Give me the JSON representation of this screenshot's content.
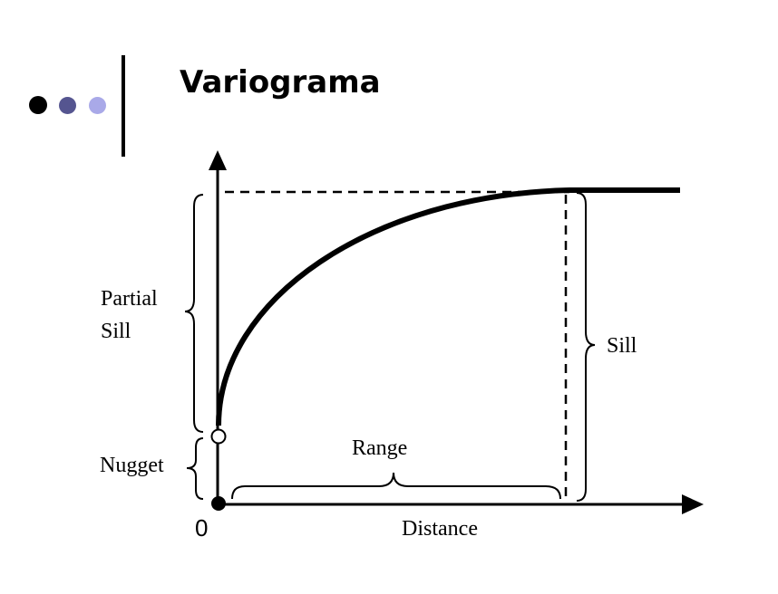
{
  "slide": {
    "title": "Variograma",
    "bullet_dot_colors": [
      "#000000",
      "#555590",
      "#a9a9e8"
    ]
  },
  "diagram": {
    "origin_label": "0",
    "x_axis_label": "Distance",
    "labels": {
      "partial_sill_line1": "Partial",
      "partial_sill_line2": "Sill",
      "nugget": "Nugget",
      "range": "Range",
      "sill": "Sill"
    }
  }
}
